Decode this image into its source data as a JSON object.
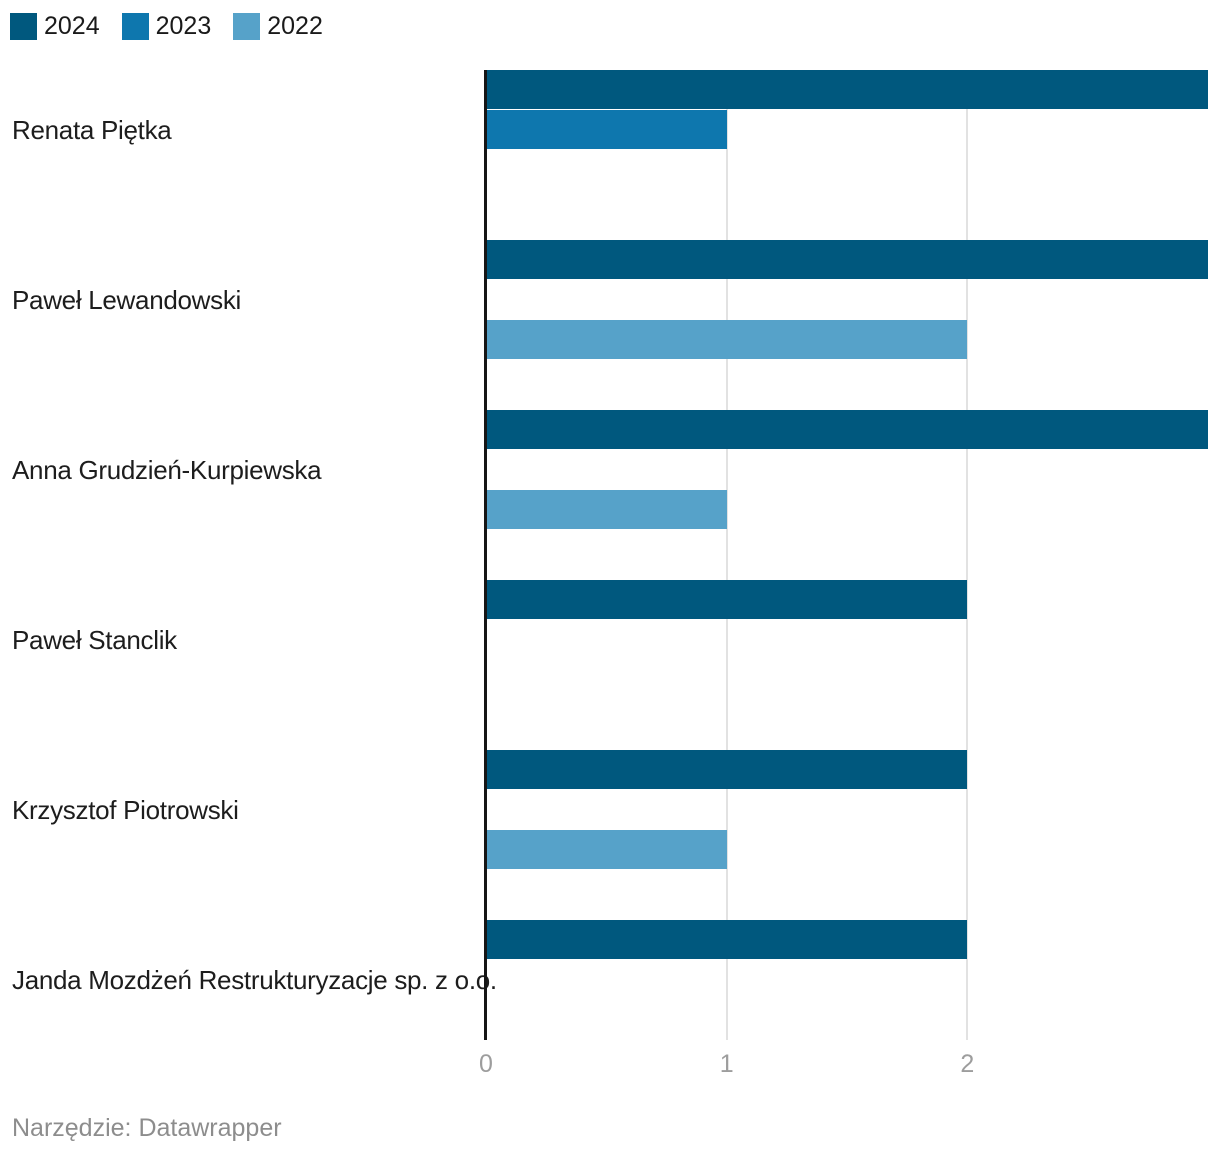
{
  "legend": {
    "items": [
      {
        "label": "2024",
        "color": "#00587e"
      },
      {
        "label": "2023",
        "color": "#0e77ae"
      },
      {
        "label": "2022",
        "color": "#56a2c9"
      }
    ]
  },
  "footer": {
    "text": "Narzędzie: Datawrapper"
  },
  "chart_data": {
    "type": "bar",
    "orientation": "horizontal",
    "title": "",
    "categories": [
      "Renata Piętka",
      "Paweł Lewandowski",
      "Anna Grudzień-Kurpiewska",
      "Paweł Stanclik",
      "Krzysztof Piotrowski",
      "Janda Mozdżeń Restrukturyzacje sp. z o.o."
    ],
    "series": [
      {
        "name": "2024",
        "color": "#00587e",
        "values": [
          3,
          3,
          3,
          2,
          2,
          2
        ]
      },
      {
        "name": "2023",
        "color": "#0e77ae",
        "values": [
          1,
          0,
          0,
          0,
          0,
          0
        ]
      },
      {
        "name": "2022",
        "color": "#56a2c9",
        "values": [
          0,
          2,
          1,
          0,
          1,
          0
        ]
      }
    ],
    "xlim": [
      0,
      3
    ],
    "x_ticks": [
      "0",
      "1",
      "2"
    ],
    "grid": true,
    "legend_position": "top-left",
    "gridline_color": "#e2e2e2",
    "axis_line_color": "#161616",
    "tick_label_color": "#9d9d9d"
  }
}
